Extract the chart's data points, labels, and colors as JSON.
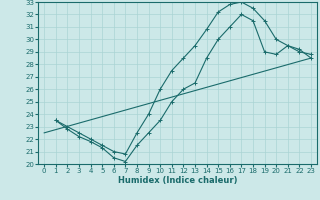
{
  "xlabel": "Humidex (Indice chaleur)",
  "bg_color": "#cce8e8",
  "line_color": "#1a6b6b",
  "grid_color": "#aad4d4",
  "xlim": [
    -0.5,
    23.5
  ],
  "ylim": [
    20,
    33
  ],
  "xticks": [
    0,
    1,
    2,
    3,
    4,
    5,
    6,
    7,
    8,
    9,
    10,
    11,
    12,
    13,
    14,
    15,
    16,
    17,
    18,
    19,
    20,
    21,
    22,
    23
  ],
  "yticks": [
    20,
    21,
    22,
    23,
    24,
    25,
    26,
    27,
    28,
    29,
    30,
    31,
    32,
    33
  ],
  "line_upper": {
    "x": [
      1,
      2,
      3,
      4,
      5,
      6,
      7,
      8,
      9,
      10,
      11,
      12,
      13,
      14,
      15,
      16,
      17,
      18,
      19,
      20,
      21,
      22,
      23
    ],
    "y": [
      23.5,
      23.0,
      22.5,
      22.0,
      21.5,
      21.0,
      20.8,
      22.5,
      24.0,
      26.0,
      27.5,
      28.5,
      29.5,
      30.8,
      32.2,
      32.8,
      33.0,
      32.5,
      31.5,
      30.0,
      29.5,
      29.0,
      28.8
    ]
  },
  "line_lower": {
    "x": [
      1,
      2,
      3,
      4,
      5,
      6,
      7,
      8,
      9,
      10,
      11,
      12,
      13,
      14,
      15,
      16,
      17,
      18,
      19,
      20,
      21,
      22,
      23
    ],
    "y": [
      23.5,
      22.8,
      22.2,
      21.8,
      21.3,
      20.5,
      20.2,
      21.5,
      22.5,
      23.5,
      25.0,
      26.0,
      26.5,
      28.5,
      30.0,
      31.0,
      32.0,
      31.5,
      29.0,
      28.8,
      29.5,
      29.2,
      28.5
    ]
  },
  "line_straight": {
    "x": [
      0,
      23
    ],
    "y": [
      22.5,
      28.5
    ]
  }
}
